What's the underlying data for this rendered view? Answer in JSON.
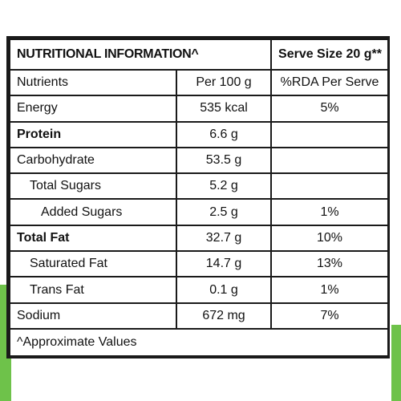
{
  "title": "NUTRITIONAL INFORMATION^",
  "serve_size": "Serve Size 20 g**",
  "columns": [
    "Nutrients",
    "Per 100 g",
    "%RDA Per Serve"
  ],
  "rows": [
    {
      "nutrient": "Energy",
      "per100": "535 kcal",
      "rda": "5%"
    },
    {
      "nutrient": "Protein",
      "per100": "6.6 g",
      "rda": ""
    },
    {
      "nutrient": "Carbohydrate",
      "per100": "53.5 g",
      "rda": ""
    },
    {
      "nutrient": "Total Sugars",
      "per100": "5.2 g",
      "rda": ""
    },
    {
      "nutrient": "Added Sugars",
      "per100": "2.5 g",
      "rda": "1%"
    },
    {
      "nutrient": "Total Fat",
      "per100": "32.7 g",
      "rda": "10%"
    },
    {
      "nutrient": "Saturated Fat",
      "per100": "14.7 g",
      "rda": "13%"
    },
    {
      "nutrient": "Trans Fat",
      "per100": "0.1 g",
      "rda": "1%"
    },
    {
      "nutrient": "Sodium",
      "per100": "672 mg",
      "rda": "7%"
    }
  ],
  "footnote": "^Approximate Values",
  "colors": {
    "accent_green": "#6ec24a",
    "border": "#1a1a1a"
  }
}
